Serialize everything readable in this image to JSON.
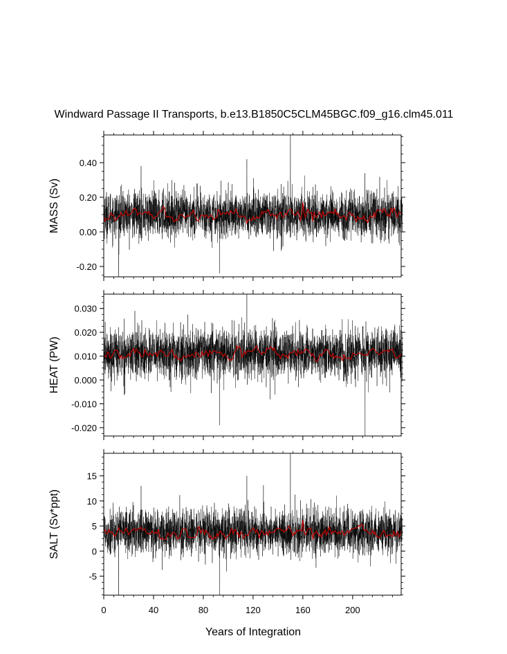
{
  "figure": {
    "title": "Windward Passage II Transports, b.e13.B1850C5CLM45BGC.f09_g16.clm45.011",
    "xlabel": "Years of Integration"
  },
  "colors": {
    "raw_series": "#000000",
    "smoothed_series": "#cc0000",
    "frame": "#000000"
  },
  "chart_data": [
    {
      "type": "line",
      "ylabel": "MASS (Sv)",
      "xlim": [
        0,
        239
      ],
      "ylim": [
        -0.26,
        0.56
      ],
      "xticks": [
        0,
        40,
        80,
        120,
        160,
        200
      ],
      "xticklabels": [
        "0",
        "40",
        "80",
        "120",
        "160",
        "200"
      ],
      "show_xticklabels": false,
      "yticks": [
        -0.2,
        0.0,
        0.2,
        0.4
      ],
      "yticklabels": [
        "-0.20",
        "0.00",
        "0.20",
        "0.40"
      ],
      "raw": {
        "mean": 0.1,
        "sd": 0.07,
        "min": -0.26,
        "max": 0.56
      },
      "smoothed": {
        "mean": 0.1,
        "sd": 0.018
      },
      "spikes": [
        {
          "x": 150,
          "y": 0.56
        },
        {
          "x": 12,
          "y": -0.26
        },
        {
          "x": 93,
          "y": -0.24
        },
        {
          "x": 115,
          "y": 0.42
        },
        {
          "x": 30,
          "y": 0.38
        }
      ],
      "smoothed_points": [
        {
          "x": 160,
          "y": 0.17
        },
        {
          "x": 168,
          "y": 0.06
        }
      ]
    },
    {
      "type": "line",
      "ylabel": "HEAT (PW)",
      "xlim": [
        0,
        239
      ],
      "ylim": [
        -0.0235,
        0.036
      ],
      "xticks": [
        0,
        40,
        80,
        120,
        160,
        200
      ],
      "xticklabels": [
        "0",
        "40",
        "80",
        "120",
        "160",
        "200"
      ],
      "show_xticklabels": false,
      "yticks": [
        -0.02,
        -0.01,
        0.0,
        0.01,
        0.02,
        0.03
      ],
      "yticklabels": [
        "-0.020",
        "-0.010",
        "0.000",
        "0.010",
        "0.020",
        "0.030"
      ],
      "raw": {
        "mean": 0.011,
        "sd": 0.0055,
        "min": -0.0235,
        "max": 0.036
      },
      "smoothed": {
        "mean": 0.011,
        "sd": 0.0012
      },
      "spikes": [
        {
          "x": 115,
          "y": 0.036
        },
        {
          "x": 210,
          "y": -0.0235
        },
        {
          "x": 93,
          "y": -0.019
        },
        {
          "x": 25,
          "y": 0.029
        }
      ],
      "smoothed_points": []
    },
    {
      "type": "line",
      "ylabel": "SALT (Sv*ppt)",
      "xlim": [
        0,
        239
      ],
      "ylim": [
        -8.8,
        19.5
      ],
      "xticks": [
        0,
        40,
        80,
        120,
        160,
        200
      ],
      "xticklabels": [
        "0",
        "40",
        "80",
        "120",
        "160",
        "200"
      ],
      "show_xticklabels": true,
      "yticks": [
        -5,
        0,
        5,
        10,
        15
      ],
      "yticklabels": [
        "-5",
        "0",
        "5",
        "10",
        "15"
      ],
      "raw": {
        "mean": 3.8,
        "sd": 2.4,
        "min": -8.8,
        "max": 19.5
      },
      "smoothed": {
        "mean": 3.8,
        "sd": 0.6
      },
      "spikes": [
        {
          "x": 150,
          "y": 19.5
        },
        {
          "x": 12,
          "y": -8.8
        },
        {
          "x": 93,
          "y": -8.8
        },
        {
          "x": 115,
          "y": 15
        },
        {
          "x": 30,
          "y": 13
        }
      ],
      "smoothed_points": [
        {
          "x": 160,
          "y": 6.2
        },
        {
          "x": 168,
          "y": 2.3
        }
      ]
    }
  ]
}
